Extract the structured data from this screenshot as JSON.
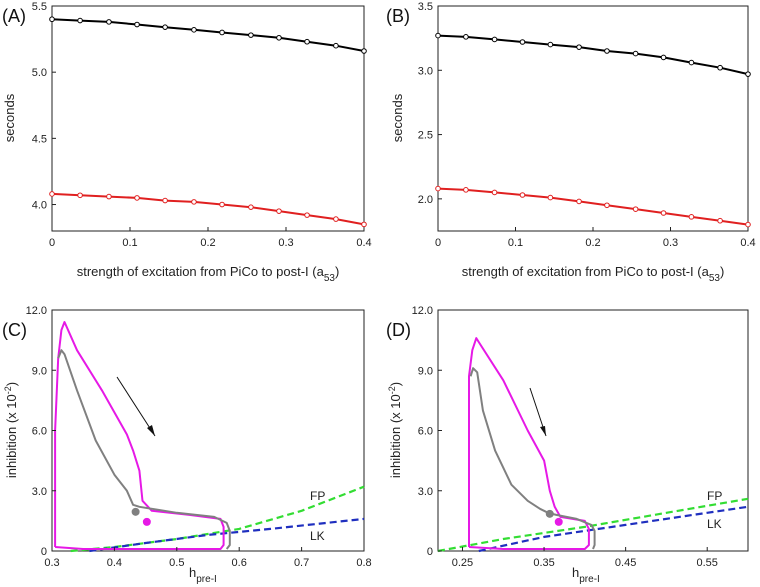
{
  "chart_data": [
    {
      "panel": "(A)",
      "type": "line",
      "xlabel": "strength of excitation from PiCo to post-I (a",
      "xlabel_sub": "53",
      "xlabel_end": ")",
      "ylabel": "seconds",
      "xlim": [
        0,
        0.4
      ],
      "ylim": [
        3.8,
        5.5
      ],
      "xticks": [
        "0",
        "0.1",
        "0.2",
        "0.3",
        "0.4"
      ],
      "yticks": [
        "4.0",
        "4.5",
        "5.0",
        "5.5"
      ],
      "series": [
        {
          "color": "#000000",
          "x": [
            0,
            0.036,
            0.073,
            0.109,
            0.145,
            0.182,
            0.218,
            0.255,
            0.291,
            0.327,
            0.364,
            0.4
          ],
          "y": [
            5.4,
            5.39,
            5.38,
            5.36,
            5.34,
            5.32,
            5.3,
            5.28,
            5.26,
            5.23,
            5.2,
            5.16
          ]
        },
        {
          "color": "#e02020",
          "x": [
            0,
            0.036,
            0.073,
            0.109,
            0.145,
            0.182,
            0.218,
            0.255,
            0.291,
            0.327,
            0.364,
            0.4
          ],
          "y": [
            4.08,
            4.07,
            4.06,
            4.05,
            4.03,
            4.02,
            4.0,
            3.98,
            3.95,
            3.92,
            3.89,
            3.85
          ]
        }
      ]
    },
    {
      "panel": "(B)",
      "type": "line",
      "xlabel": "strength of excitation from PiCo to post-I (a",
      "xlabel_sub": "53",
      "xlabel_end": ")",
      "ylabel": "seconds",
      "xlim": [
        0,
        0.4
      ],
      "ylim": [
        1.75,
        3.5
      ],
      "xticks": [
        "0",
        "0.1",
        "0.2",
        "0.3",
        "0.4"
      ],
      "yticks": [
        "2.0",
        "2.5",
        "3.0",
        "3.5"
      ],
      "series": [
        {
          "color": "#000000",
          "x": [
            0,
            0.036,
            0.073,
            0.109,
            0.145,
            0.182,
            0.218,
            0.255,
            0.291,
            0.327,
            0.364,
            0.4
          ],
          "y": [
            3.27,
            3.26,
            3.24,
            3.22,
            3.2,
            3.18,
            3.15,
            3.13,
            3.1,
            3.06,
            3.02,
            2.97
          ]
        },
        {
          "color": "#e02020",
          "x": [
            0,
            0.036,
            0.073,
            0.109,
            0.145,
            0.182,
            0.218,
            0.255,
            0.291,
            0.327,
            0.364,
            0.4
          ],
          "y": [
            2.08,
            2.07,
            2.05,
            2.03,
            2.01,
            1.98,
            1.95,
            1.92,
            1.89,
            1.86,
            1.83,
            1.8
          ]
        }
      ]
    },
    {
      "panel": "(C)",
      "type": "line",
      "xlabel": "h",
      "xlabel_sub": "pre-I",
      "ylabel": "inhibition (x 10",
      "ylabel_sup": "-2",
      "ylabel_end": ")",
      "xlim": [
        0.3,
        0.8
      ],
      "ylim": [
        0,
        12
      ],
      "xticks": [
        "0.3",
        "0.4",
        "0.5",
        "0.6",
        "0.7",
        "0.8"
      ],
      "yticks": [
        "0",
        "3.0",
        "6.0",
        "9.0",
        "12.0"
      ],
      "legend": [
        "FP",
        "LK"
      ],
      "series": [
        {
          "name": "FP",
          "color": "#33dd33",
          "dashed": true,
          "x": [
            0.33,
            0.4,
            0.5,
            0.6,
            0.7,
            0.8
          ],
          "y": [
            0.0,
            0.2,
            0.6,
            1.1,
            2.0,
            3.2
          ]
        },
        {
          "name": "LK",
          "color": "#1f2fbf",
          "dashed": true,
          "x": [
            0.36,
            0.45,
            0.55,
            0.65,
            0.8
          ],
          "y": [
            0.0,
            0.4,
            0.8,
            1.1,
            1.6
          ]
        },
        {
          "color": "#e619e6",
          "x": [
            0.305,
            0.305,
            0.31,
            0.315,
            0.32,
            0.34,
            0.38,
            0.42,
            0.43,
            0.44,
            0.445,
            0.46,
            0.52,
            0.57,
            0.575,
            0.575,
            0.57,
            0.45,
            0.35,
            0.305
          ],
          "y": [
            0.2,
            6.0,
            9.6,
            11.0,
            11.4,
            10.0,
            8.0,
            5.8,
            5.0,
            4.0,
            2.5,
            2.0,
            1.8,
            1.6,
            1.2,
            0.3,
            0.1,
            0.1,
            0.1,
            0.2
          ]
        },
        {
          "color": "#808080",
          "x": [
            0.31,
            0.315,
            0.32,
            0.34,
            0.37,
            0.4,
            0.42,
            0.43,
            0.44,
            0.5,
            0.56,
            0.58,
            0.585,
            0.585,
            0.58
          ],
          "y": [
            9.6,
            10.0,
            9.8,
            8.0,
            5.5,
            3.8,
            3.0,
            2.3,
            2.2,
            1.9,
            1.7,
            1.4,
            1.0,
            0.3,
            0.1
          ]
        }
      ],
      "points": [
        {
          "color": "#808080",
          "x": 0.434,
          "y": 1.95
        },
        {
          "color": "#e619e6",
          "x": 0.452,
          "y": 1.45
        }
      ]
    },
    {
      "panel": "(D)",
      "type": "line",
      "xlabel": "h",
      "xlabel_sub": "pre-I",
      "ylabel": "inhibition (x 10",
      "ylabel_sup": "-2",
      "ylabel_end": ")",
      "xlim": [
        0.22,
        0.6
      ],
      "ylim": [
        0,
        12
      ],
      "xticks": [
        "0.25",
        "0.35",
        "0.45",
        "0.55"
      ],
      "yticks": [
        "0",
        "3.0",
        "6.0",
        "9.0",
        "12.0"
      ],
      "legend": [
        "FP",
        "LK"
      ],
      "series": [
        {
          "name": "FP",
          "color": "#33dd33",
          "dashed": true,
          "x": [
            0.22,
            0.3,
            0.4,
            0.5,
            0.6
          ],
          "y": [
            0.0,
            0.6,
            1.2,
            1.9,
            2.6
          ]
        },
        {
          "name": "LK",
          "color": "#1f2fbf",
          "dashed": true,
          "x": [
            0.27,
            0.35,
            0.45,
            0.55,
            0.6
          ],
          "y": [
            0.0,
            0.7,
            1.3,
            1.9,
            2.2
          ]
        },
        {
          "color": "#e619e6",
          "x": [
            0.258,
            0.258,
            0.262,
            0.267,
            0.27,
            0.3,
            0.33,
            0.35,
            0.357,
            0.363,
            0.37,
            0.4,
            0.405,
            0.405,
            0.4,
            0.35,
            0.3,
            0.258
          ],
          "y": [
            0.2,
            8.7,
            10.0,
            10.6,
            10.4,
            8.5,
            6.0,
            4.5,
            3.0,
            2.2,
            1.7,
            1.5,
            1.1,
            0.3,
            0.1,
            0.1,
            0.1,
            0.2
          ]
        },
        {
          "color": "#808080",
          "x": [
            0.26,
            0.263,
            0.268,
            0.275,
            0.29,
            0.31,
            0.33,
            0.345,
            0.355,
            0.365,
            0.39,
            0.408,
            0.412,
            0.412,
            0.41
          ],
          "y": [
            8.7,
            9.1,
            8.9,
            7.0,
            5.0,
            3.3,
            2.5,
            2.1,
            1.9,
            1.8,
            1.6,
            1.3,
            1.0,
            0.3,
            0.1
          ]
        }
      ],
      "points": [
        {
          "color": "#808080",
          "x": 0.357,
          "y": 1.85
        },
        {
          "color": "#e619e6",
          "x": 0.368,
          "y": 1.45
        }
      ]
    }
  ]
}
